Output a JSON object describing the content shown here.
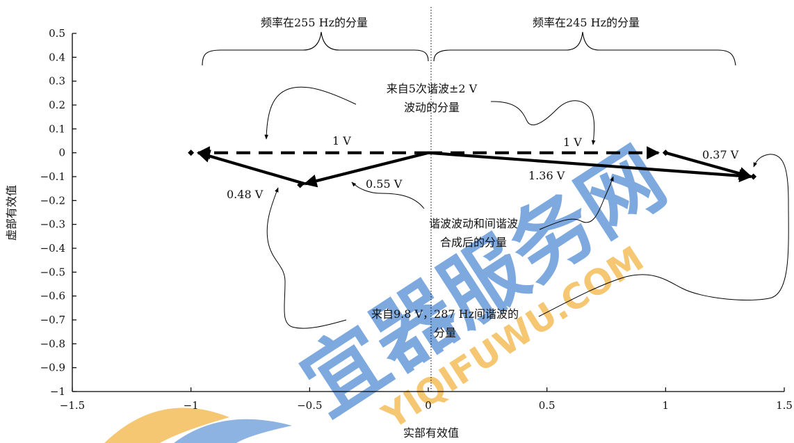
{
  "chart_data": {
    "type": "phasor",
    "xlabel": "实部有效值",
    "ylabel": "虚部有效值",
    "xlim": [
      -1.5,
      1.5
    ],
    "ylim": [
      -1,
      0.5
    ],
    "xticks": [
      -1.5,
      -1,
      -0.5,
      0,
      0.5,
      1,
      1.5
    ],
    "xtick_labels": [
      "−1.5",
      "−1",
      "−0.5",
      "0",
      "0.5",
      "1",
      "1.5"
    ],
    "yticks": [
      0.5,
      0.4,
      0.3,
      0.2,
      0.1,
      0,
      -0.1,
      -0.2,
      -0.3,
      -0.4,
      -0.5,
      -0.6,
      -0.7,
      -0.8,
      -0.9,
      -1
    ],
    "ytick_labels": [
      "0.5",
      "0.4",
      "0.3",
      "0.2",
      "0.1",
      "0",
      "−0.1",
      "−0.2",
      "−0.3",
      "−0.4",
      "−0.5",
      "−0.6",
      "−0.7",
      "−0.8",
      "−0.9",
      "−1"
    ],
    "vectors": [
      {
        "from": [
          0,
          0
        ],
        "to": [
          -0.97,
          0
        ],
        "style": "dashed",
        "label": "1 V"
      },
      {
        "from": [
          0,
          0
        ],
        "to": [
          0.97,
          0
        ],
        "style": "dashed",
        "label": "1 V"
      },
      {
        "from": [
          0,
          0
        ],
        "to": [
          -0.52,
          -0.13
        ],
        "style": "solid",
        "label": "0.55 V"
      },
      {
        "from": [
          -0.52,
          -0.13
        ],
        "to": [
          -0.97,
          0
        ],
        "style": "solid",
        "label": "0.48 V"
      },
      {
        "from": [
          0,
          0
        ],
        "to": [
          1.36,
          -0.1
        ],
        "style": "solid",
        "label": "1.36 V"
      },
      {
        "from": [
          1.0,
          0
        ],
        "to": [
          1.36,
          -0.1
        ],
        "style": "solid",
        "label": "0.37 V"
      }
    ],
    "points": [
      [
        -1.0,
        0
      ],
      [
        -0.54,
        -0.135
      ],
      [
        1.0,
        0
      ],
      [
        1.37,
        -0.1
      ]
    ],
    "annotations": {
      "left_brace": "频率在255 Hz的分量",
      "right_brace": "频率在245 Hz的分量",
      "harmonic_5": [
        "来自5次谐波±2 V",
        "波动的分量"
      ],
      "combined": [
        "谐波波动和间谐波",
        "合成后的分量"
      ],
      "interharmonic": [
        "来自9.8 V，287 Hz间谐波的",
        "分量"
      ]
    }
  },
  "watermark": {
    "main": "宜器服务网",
    "sub": "YIQIFUWU.COM",
    "colors": {
      "blue": "#3f7fd0",
      "orange": "#f2b23c"
    }
  }
}
